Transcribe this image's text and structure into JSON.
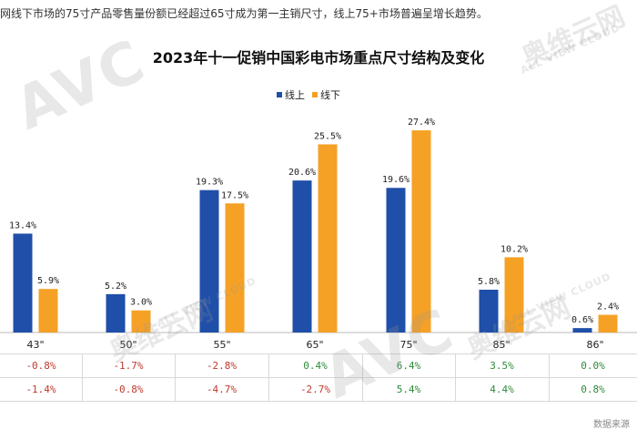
{
  "header_text": "网线下市场的75寸产品零售量份额已经超过65寸成为第一主销尺寸，线上75+市场普遍呈增长趋势。",
  "watermark": {
    "avc": "AVC",
    "cn": "奥维云网",
    "en": "ALL VIEW CLOUD"
  },
  "footer_note": "数据来源",
  "colors": {
    "online": "#1f4fa8",
    "offline": "#f5a126",
    "negative": "#c0392b",
    "positive": "#2e8b3a",
    "neutral": "#666666"
  },
  "chart_data": {
    "type": "bar",
    "title": "2023年十一促销中国彩电市场重点尺寸结构及变化",
    "categories": [
      "43\"",
      "50\"",
      "55\"",
      "65\"",
      "75\"",
      "85\"",
      "86\""
    ],
    "series": [
      {
        "name": "线上",
        "values": [
          13.4,
          5.2,
          19.3,
          20.6,
          19.6,
          5.8,
          0.6
        ],
        "labels": [
          "13.4%",
          "5.2%",
          "19.3%",
          "20.6%",
          "19.6%",
          "5.8%",
          "0.6%"
        ]
      },
      {
        "name": "线下",
        "values": [
          5.9,
          3.0,
          17.5,
          25.5,
          27.4,
          10.2,
          2.4
        ],
        "labels": [
          "5.9%",
          "3.0%",
          "17.5%",
          "25.5%",
          "27.4%",
          "10.2%",
          "2.4%"
        ]
      }
    ],
    "ylim": [
      0,
      30
    ],
    "change_rows": [
      [
        "-0.8%",
        "-1.7%",
        "-2.8%",
        "0.4%",
        "6.4%",
        "3.5%",
        "0.0%"
      ],
      [
        "-1.4%",
        "-0.8%",
        "-4.7%",
        "-2.7%",
        "5.4%",
        "4.4%",
        "0.8%"
      ]
    ]
  }
}
